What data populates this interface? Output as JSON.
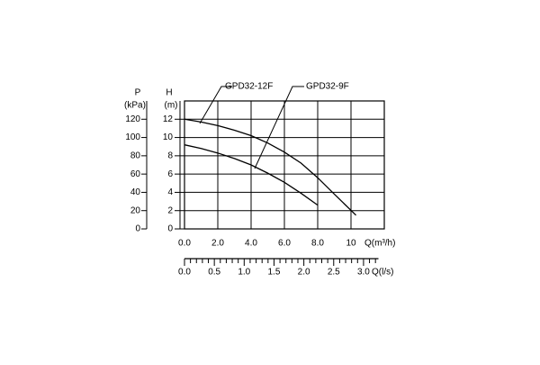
{
  "chart_data": {
    "type": "line",
    "y_label_top": "H",
    "y_label_unit": "(m)",
    "y2_label_top": "P",
    "y2_label_unit": "(kPa)",
    "x_label": "Q(m³/h)",
    "x2_label": "Q(l/s)",
    "xlim": [
      0,
      12
    ],
    "xticks": [
      {
        "value": 0,
        "label": "0.0"
      },
      {
        "value": 2,
        "label": "2.0"
      },
      {
        "value": 4,
        "label": "4.0"
      },
      {
        "value": 6,
        "label": "6.0"
      },
      {
        "value": 8,
        "label": "8.0"
      },
      10
    ],
    "ylim": [
      0,
      14
    ],
    "yticks": [
      0,
      2,
      4,
      6,
      8,
      10,
      12
    ],
    "y2lim": [
      0,
      140
    ],
    "y2ticks": [
      0,
      20,
      40,
      60,
      80,
      100,
      120
    ],
    "x2lim": [
      0,
      3.25
    ],
    "x2ticks": [
      {
        "value": 0,
        "label": "0.0"
      },
      0.5,
      {
        "value": 1,
        "label": "1.0"
      },
      1.5,
      {
        "value": 2,
        "label": "2.0"
      },
      2.5,
      {
        "value": 3,
        "label": "3.0"
      }
    ],
    "x2minorticks": [
      0.1,
      0.2,
      0.3,
      0.4,
      0.6,
      0.7,
      0.8,
      0.9,
      1.1,
      1.2,
      1.3,
      1.4,
      1.6,
      1.7,
      1.8,
      1.9,
      2.1,
      2.2,
      2.3,
      2.4,
      2.6,
      2.7,
      2.8,
      2.9,
      3.1,
      3.2
    ],
    "grid": true,
    "series": [
      {
        "name": "GPD32-12F",
        "color": "#000000",
        "x": [
          0,
          1,
          2,
          3,
          4,
          5,
          6,
          7,
          8,
          9,
          10.3
        ],
        "values": [
          12,
          11.7,
          11.3,
          10.8,
          10.2,
          9.4,
          8.4,
          7.2,
          5.6,
          3.8,
          1.5
        ]
      },
      {
        "name": "GPD32-9F",
        "color": "#000000",
        "x": [
          0,
          1,
          2,
          3,
          4,
          5,
          6,
          7,
          8
        ],
        "values": [
          9.2,
          8.8,
          8.3,
          7.7,
          7.0,
          6.1,
          5.1,
          3.9,
          2.6
        ]
      }
    ]
  }
}
